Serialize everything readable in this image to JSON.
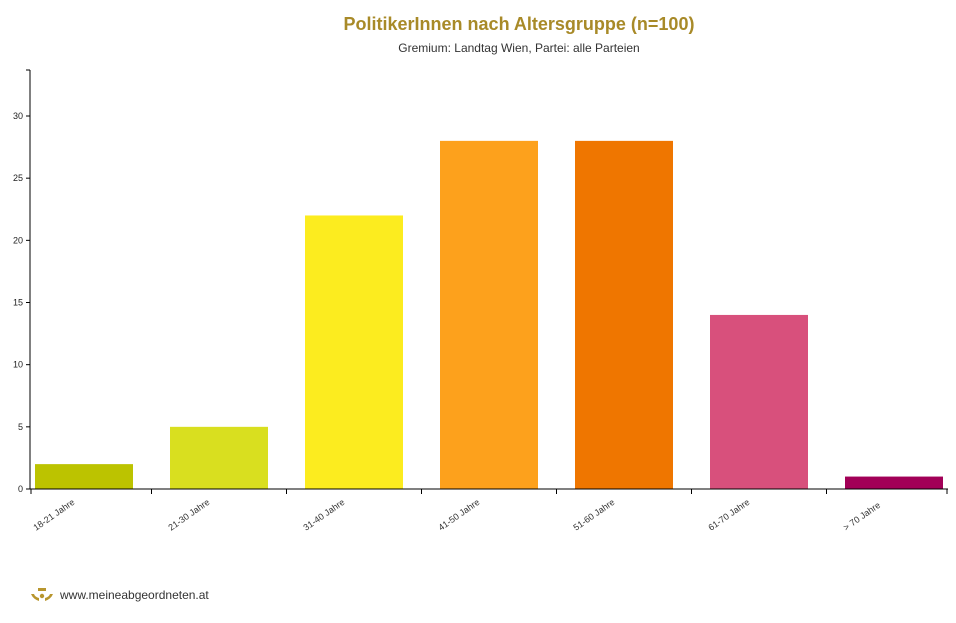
{
  "chart_data": {
    "type": "bar",
    "title": "PolitikerInnen nach Altersgruppe (n=100)",
    "subtitle": "Gremium: Landtag Wien, Partei: alle Parteien",
    "categories": [
      "18-21 Jahre",
      "21-30 Jahre",
      "31-40 Jahre",
      "41-50 Jahre",
      "51-60 Jahre",
      "61-70 Jahre",
      "> 70 Jahre"
    ],
    "values": [
      2,
      5,
      22,
      28,
      28,
      14,
      1
    ],
    "colors": [
      "#bcc300",
      "#d9df1f",
      "#fcec1f",
      "#fda11c",
      "#ef7600",
      "#d8507c",
      "#a20057"
    ],
    "xlabel": "",
    "ylabel": "",
    "ylim": [
      0,
      33.7
    ],
    "yticks": [
      0,
      5,
      10,
      15,
      20,
      25,
      30
    ],
    "grid": false
  },
  "footer": {
    "url": "www.meineabgeordneten.at",
    "logo_color": "#b8962e"
  }
}
